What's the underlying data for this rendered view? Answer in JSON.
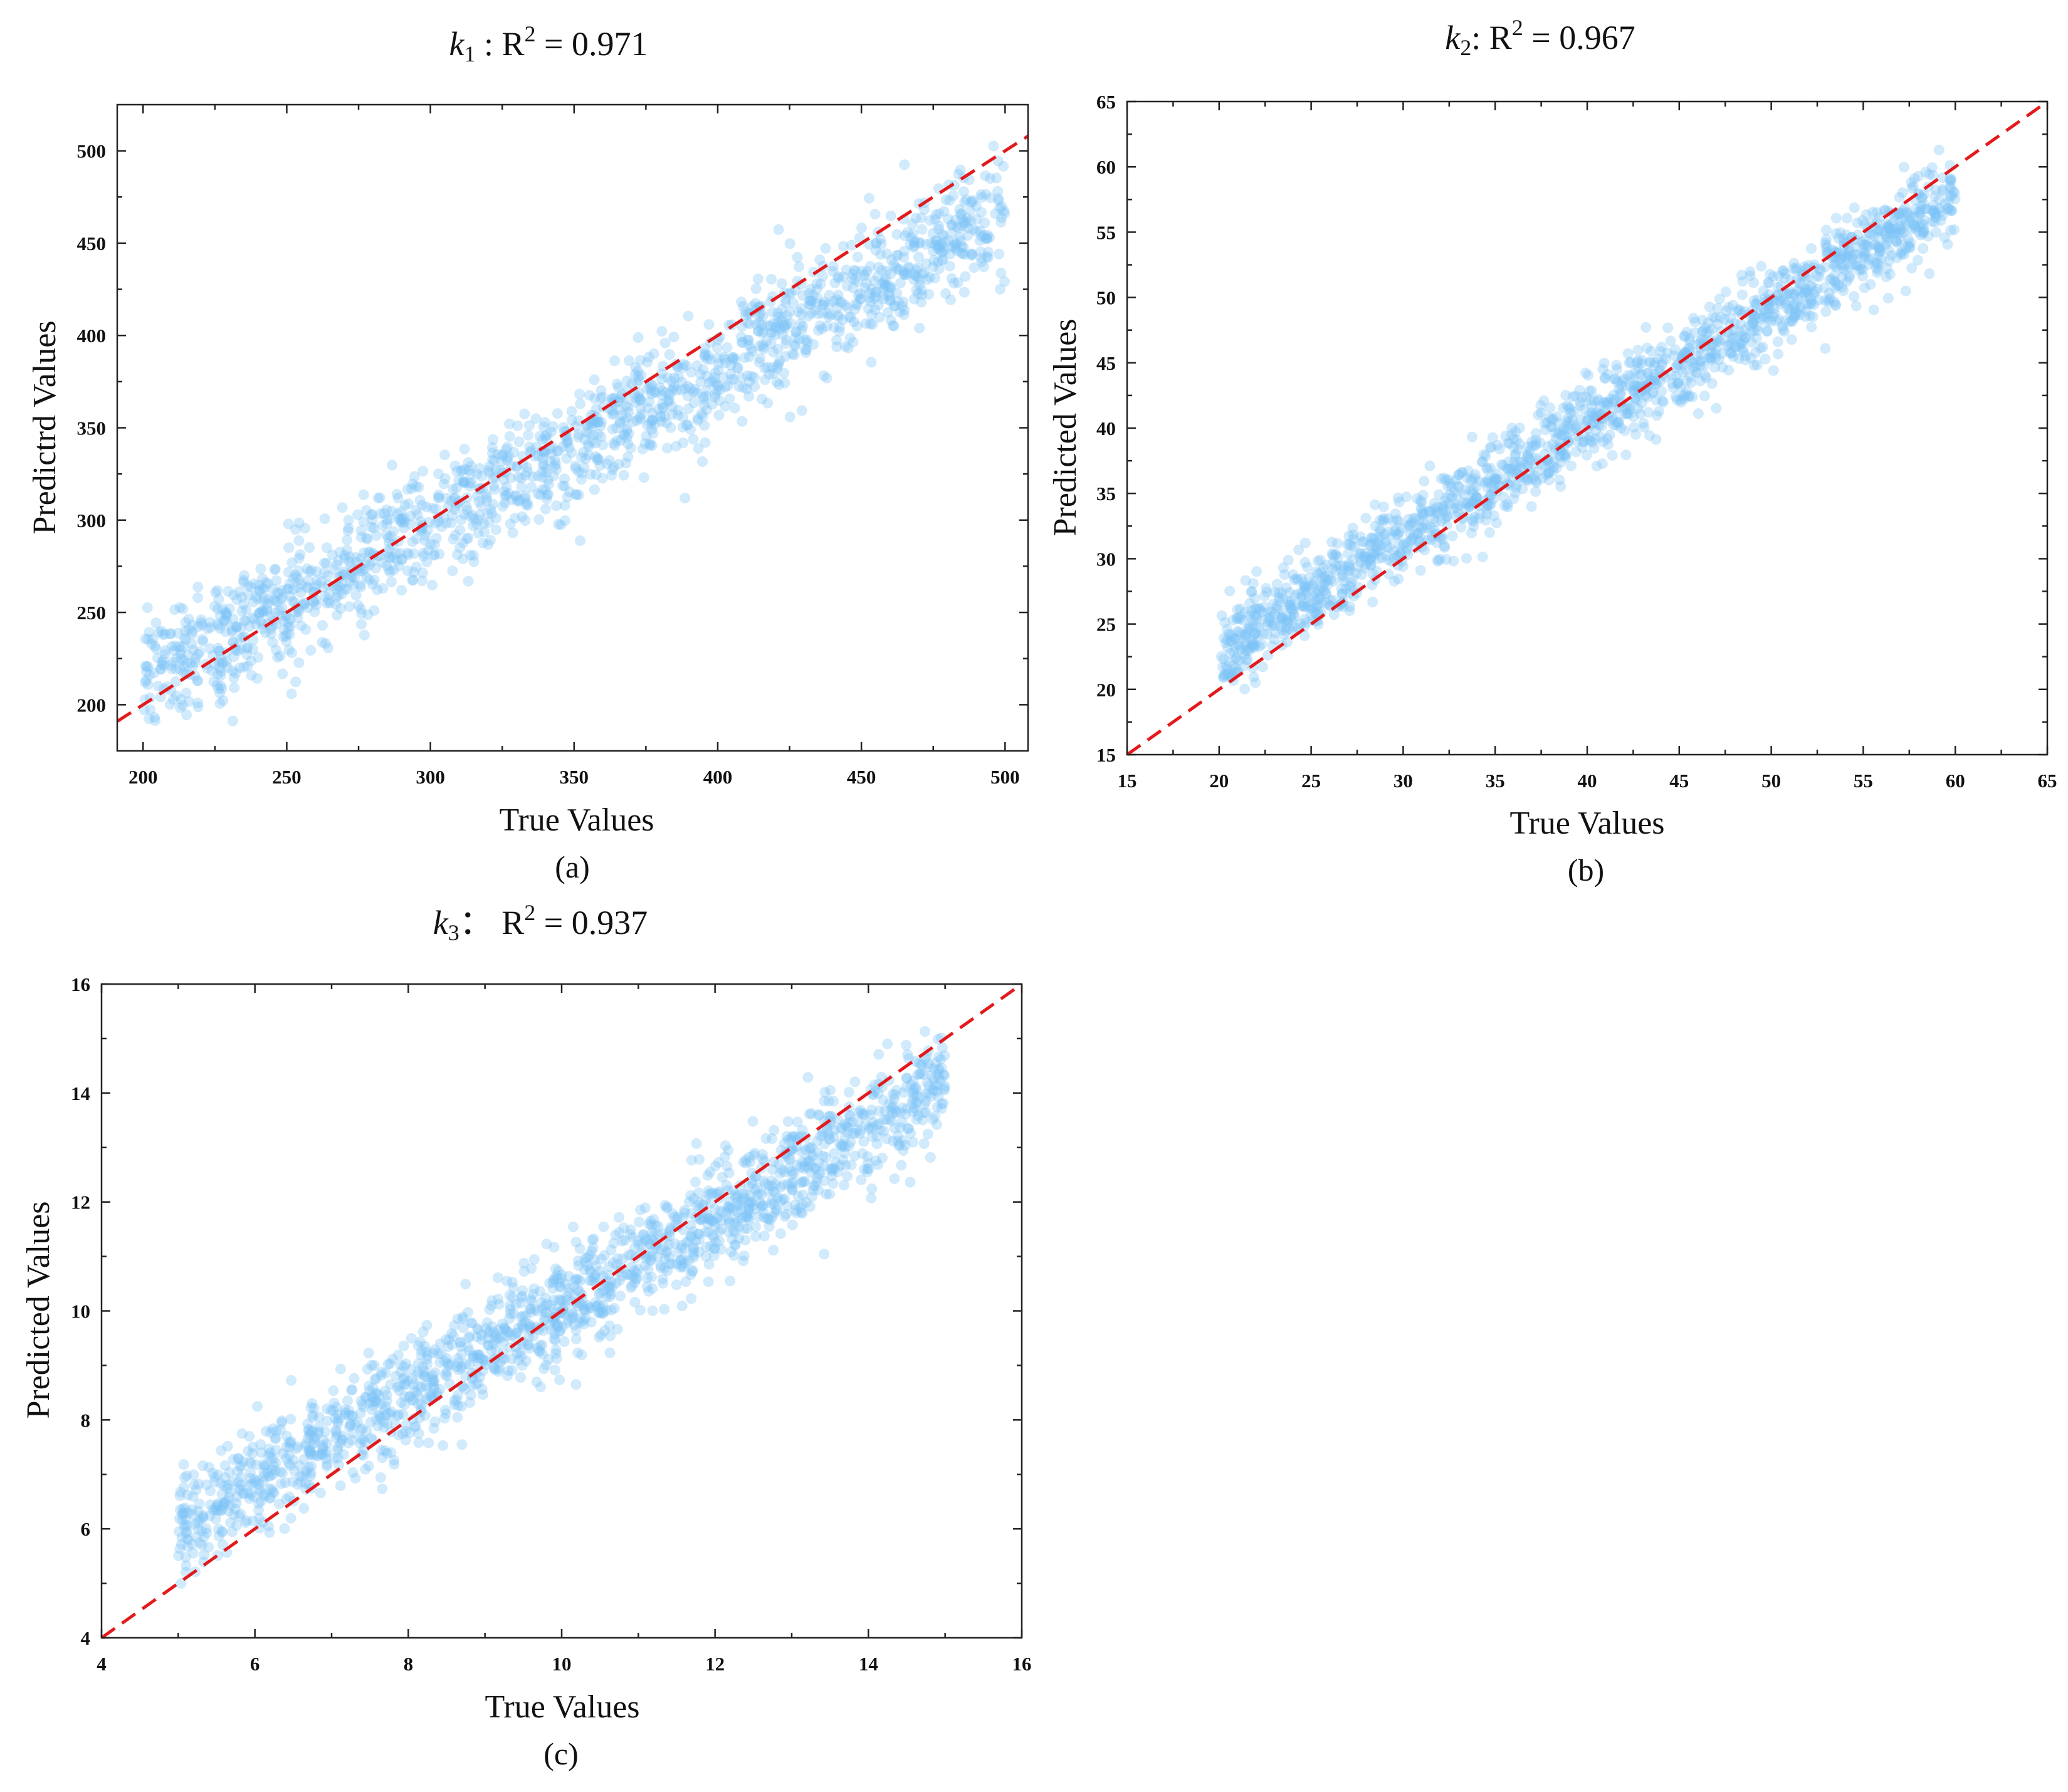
{
  "figure": {
    "background": "#ffffff",
    "point_color": "#7cc4f5",
    "identity_line_color": "#e31a1c"
  },
  "chart_data": [
    {
      "id": "a",
      "type": "scatter",
      "title_var": "k",
      "title_sub": "1",
      "title_sep": " : R",
      "title_sup": "2",
      "title_value": " = 0.971",
      "xlabel": "True Values",
      "ylabel": "Predictrd Values",
      "panel_label": "(a)",
      "xlim": [
        191,
        508
      ],
      "ylim": [
        175,
        525
      ],
      "xticks": [
        200,
        250,
        300,
        350,
        400,
        450,
        500
      ],
      "yticks": [
        200,
        250,
        300,
        350,
        400,
        450,
        500
      ],
      "xtick_labels": [
        "200",
        "250",
        "300",
        "350",
        "400",
        "450",
        "500"
      ],
      "ytick_labels": [
        "200",
        "250",
        "300",
        "350",
        "400",
        "450",
        "500"
      ],
      "identity_line": true,
      "points": {
        "n": 1600,
        "x_range": [
          200,
          500
        ],
        "trend": "y = 0.85x + 42",
        "noise_sd": 16,
        "seed": 11
      }
    },
    {
      "id": "b",
      "type": "scatter",
      "title_var": "k",
      "title_sub": "2",
      "title_sep": ": R",
      "title_sup": "2",
      "title_value": " = 0.967",
      "xlabel": "True Values",
      "ylabel": "Predicted Values",
      "panel_label": "(b)",
      "xlim": [
        15,
        65
      ],
      "ylim": [
        15,
        65
      ],
      "xticks": [
        15,
        20,
        25,
        30,
        35,
        40,
        45,
        50,
        55,
        60,
        65
      ],
      "yticks": [
        15,
        20,
        25,
        30,
        35,
        40,
        45,
        50,
        55,
        60,
        65
      ],
      "xtick_labels": [
        "15",
        "20",
        "25",
        "30",
        "35",
        "40",
        "45",
        "50",
        "55",
        "60",
        "65"
      ],
      "ytick_labels": [
        "15",
        "20",
        "25",
        "30",
        "35",
        "40",
        "45",
        "50",
        "55",
        "60",
        "65"
      ],
      "identity_line": true,
      "points": {
        "n": 1600,
        "x_range": [
          20,
          60
        ],
        "trend": "y = 0.87x + 5.5",
        "noise_sd": 1.6,
        "seed": 23
      }
    },
    {
      "id": "c",
      "type": "scatter",
      "title_var": "k",
      "title_sub": "3",
      "title_sep": "： R",
      "title_sup": "2",
      "title_value": " = 0.937",
      "xlabel": "True Values",
      "ylabel": "Predicted Values",
      "panel_label": "(c)",
      "xlim": [
        4,
        16
      ],
      "ylim": [
        4,
        16
      ],
      "xticks": [
        4,
        6,
        8,
        10,
        12,
        14,
        16
      ],
      "yticks": [
        4,
        6,
        8,
        10,
        12,
        14,
        16
      ],
      "xtick_labels": [
        "4",
        "6",
        "8",
        "10",
        "12",
        "14",
        "16"
      ],
      "ytick_labels": [
        "4",
        "6",
        "8",
        "10",
        "12",
        "14",
        "16"
      ],
      "identity_line": true,
      "points": {
        "n": 1600,
        "x_range": [
          5,
          15
        ],
        "trend": "y = 0.82x + 1.9",
        "noise_sd": 0.5,
        "seed": 37
      }
    }
  ]
}
